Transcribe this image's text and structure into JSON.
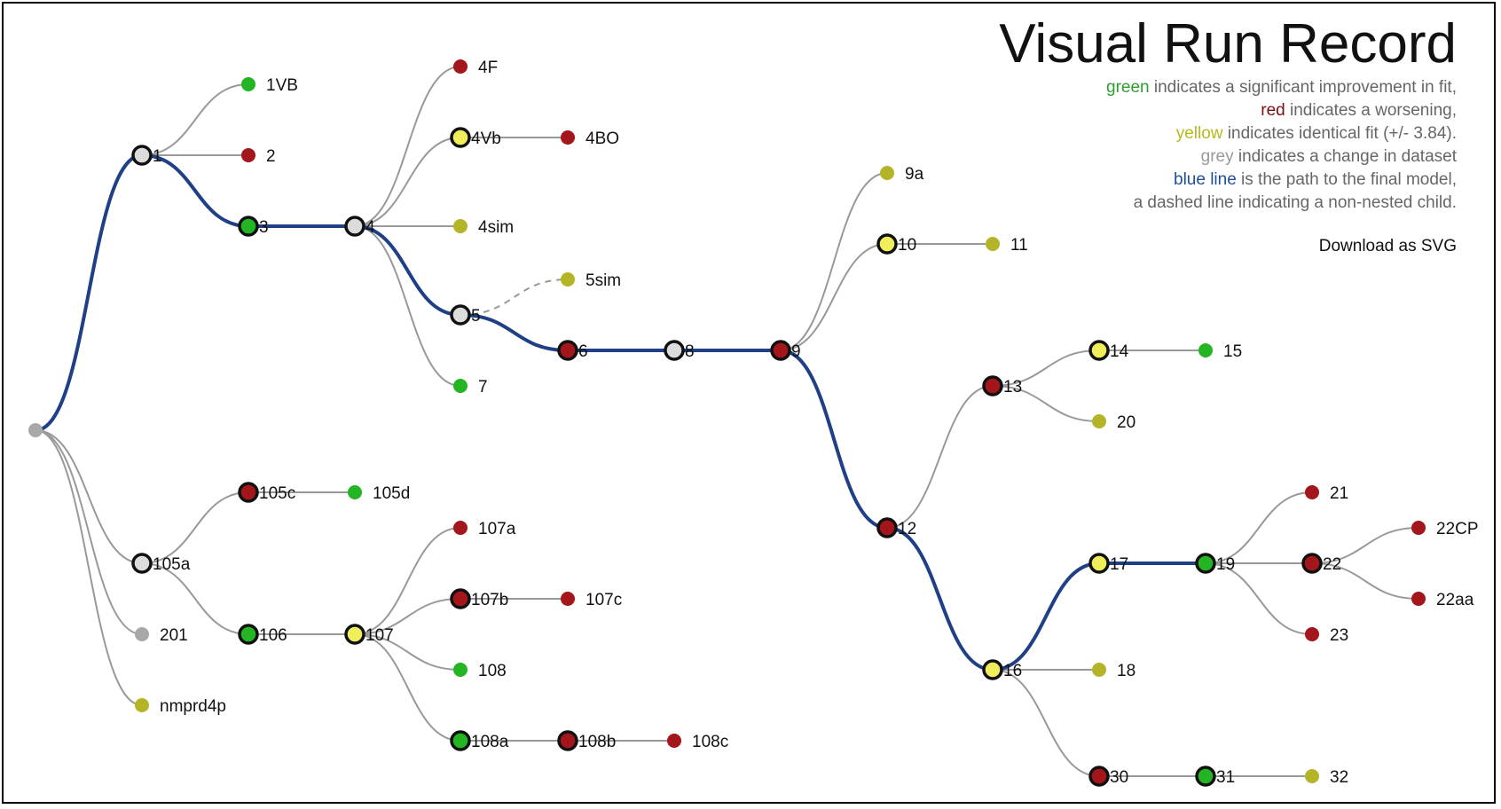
{
  "title": "Visual Run Record",
  "legend": [
    {
      "key": "green",
      "key_color": "#2e9e2e",
      "text": " indicates a significant improvement in fit,"
    },
    {
      "key": "red",
      "key_color": "#7b0f12",
      "text": " indicates a worsening,"
    },
    {
      "key": "yellow",
      "key_color": "#b8b81e",
      "text": " indicates identical fit (+/- 3.84)."
    },
    {
      "key": "grey",
      "key_color": "#999999",
      "text": " indicates a change in dataset"
    },
    {
      "key": "blue line",
      "key_color": "#1f4e9c",
      "text": " is the path to the final model,"
    },
    {
      "key": "",
      "key_color": "#666666",
      "text": "a dashed line indicating a non-nested child."
    }
  ],
  "download_label": "Download as SVG",
  "colors": {
    "green": "#23b523",
    "red": "#a3161c",
    "yellow": "#f0ee5a",
    "yellow_leaf": "#b3b428",
    "grey": "#dcdcdc",
    "grey_leaf": "#a8a8a8",
    "blue_path": "#1f3f86",
    "edge": "#999999"
  },
  "nodes": [
    {
      "id": "root",
      "label": "",
      "color": "grey_leaf",
      "expanded": false
    },
    {
      "id": "1",
      "label": "1",
      "color": "grey",
      "expanded": true
    },
    {
      "id": "1VB",
      "label": "1VB",
      "color": "green",
      "expanded": false
    },
    {
      "id": "2",
      "label": "2",
      "color": "red",
      "expanded": false
    },
    {
      "id": "3",
      "label": "3",
      "color": "green",
      "expanded": true
    },
    {
      "id": "4",
      "label": "4",
      "color": "grey",
      "expanded": true
    },
    {
      "id": "4F",
      "label": "4F",
      "color": "red",
      "expanded": false
    },
    {
      "id": "4Vb",
      "label": "4Vb",
      "color": "yellow",
      "expanded": true
    },
    {
      "id": "4BO",
      "label": "4BO",
      "color": "red",
      "expanded": false
    },
    {
      "id": "4sim",
      "label": "4sim",
      "color": "yellow_leaf",
      "expanded": false
    },
    {
      "id": "5",
      "label": "5",
      "color": "grey",
      "expanded": true
    },
    {
      "id": "5sim",
      "label": "5sim",
      "color": "yellow_leaf",
      "expanded": false
    },
    {
      "id": "7",
      "label": "7",
      "color": "green",
      "expanded": false
    },
    {
      "id": "6",
      "label": "6",
      "color": "red",
      "expanded": true
    },
    {
      "id": "8",
      "label": "8",
      "color": "grey",
      "expanded": true
    },
    {
      "id": "9",
      "label": "9",
      "color": "red",
      "expanded": true
    },
    {
      "id": "9a",
      "label": "9a",
      "color": "yellow_leaf",
      "expanded": false
    },
    {
      "id": "10",
      "label": "10",
      "color": "yellow",
      "expanded": true
    },
    {
      "id": "11",
      "label": "11",
      "color": "yellow_leaf",
      "expanded": false
    },
    {
      "id": "12",
      "label": "12",
      "color": "red",
      "expanded": true
    },
    {
      "id": "13",
      "label": "13",
      "color": "red",
      "expanded": true
    },
    {
      "id": "14",
      "label": "14",
      "color": "yellow",
      "expanded": true
    },
    {
      "id": "15",
      "label": "15",
      "color": "green",
      "expanded": false
    },
    {
      "id": "20",
      "label": "20",
      "color": "yellow_leaf",
      "expanded": false
    },
    {
      "id": "16",
      "label": "16",
      "color": "yellow",
      "expanded": true
    },
    {
      "id": "17",
      "label": "17",
      "color": "yellow",
      "expanded": true
    },
    {
      "id": "18",
      "label": "18",
      "color": "yellow_leaf",
      "expanded": false
    },
    {
      "id": "30",
      "label": "30",
      "color": "red",
      "expanded": true
    },
    {
      "id": "31",
      "label": "31",
      "color": "green",
      "expanded": true
    },
    {
      "id": "32",
      "label": "32",
      "color": "yellow_leaf",
      "expanded": false
    },
    {
      "id": "19",
      "label": "19",
      "color": "green",
      "expanded": true
    },
    {
      "id": "21",
      "label": "21",
      "color": "red",
      "expanded": false
    },
    {
      "id": "22",
      "label": "22",
      "color": "red",
      "expanded": true
    },
    {
      "id": "23",
      "label": "23",
      "color": "red",
      "expanded": false
    },
    {
      "id": "22CP",
      "label": "22CP",
      "color": "red",
      "expanded": false
    },
    {
      "id": "22aa",
      "label": "22aa",
      "color": "red",
      "expanded": false
    },
    {
      "id": "105a",
      "label": "105a",
      "color": "grey",
      "expanded": true
    },
    {
      "id": "105c",
      "label": "105c",
      "color": "red",
      "expanded": true
    },
    {
      "id": "105d",
      "label": "105d",
      "color": "green",
      "expanded": false
    },
    {
      "id": "106",
      "label": "106",
      "color": "green",
      "expanded": true
    },
    {
      "id": "107",
      "label": "107",
      "color": "yellow",
      "expanded": true
    },
    {
      "id": "107a",
      "label": "107a",
      "color": "red",
      "expanded": false
    },
    {
      "id": "107b",
      "label": "107b",
      "color": "red",
      "expanded": true
    },
    {
      "id": "107c",
      "label": "107c",
      "color": "red",
      "expanded": false
    },
    {
      "id": "108",
      "label": "108",
      "color": "green",
      "expanded": false
    },
    {
      "id": "108a",
      "label": "108a",
      "color": "green",
      "expanded": true
    },
    {
      "id": "108b",
      "label": "108b",
      "color": "red",
      "expanded": true
    },
    {
      "id": "108c",
      "label": "108c",
      "color": "red",
      "expanded": false
    },
    {
      "id": "201",
      "label": "201",
      "color": "grey_leaf",
      "expanded": false
    },
    {
      "id": "nmprd4p",
      "label": "nmprd4p",
      "color": "yellow_leaf",
      "expanded": false
    }
  ],
  "edges": [
    {
      "from": "root",
      "to": "1",
      "final_path": true,
      "dashed": false
    },
    {
      "from": "root",
      "to": "105a",
      "final_path": false,
      "dashed": false
    },
    {
      "from": "root",
      "to": "201",
      "final_path": false,
      "dashed": false
    },
    {
      "from": "root",
      "to": "nmprd4p",
      "final_path": false,
      "dashed": false
    },
    {
      "from": "1",
      "to": "1VB",
      "final_path": false,
      "dashed": false
    },
    {
      "from": "1",
      "to": "2",
      "final_path": false,
      "dashed": false
    },
    {
      "from": "1",
      "to": "3",
      "final_path": true,
      "dashed": false
    },
    {
      "from": "3",
      "to": "4",
      "final_path": true,
      "dashed": false
    },
    {
      "from": "4",
      "to": "4F",
      "final_path": false,
      "dashed": false
    },
    {
      "from": "4",
      "to": "4Vb",
      "final_path": false,
      "dashed": false
    },
    {
      "from": "4",
      "to": "4sim",
      "final_path": false,
      "dashed": false
    },
    {
      "from": "4",
      "to": "5",
      "final_path": true,
      "dashed": false
    },
    {
      "from": "4",
      "to": "7",
      "final_path": false,
      "dashed": false
    },
    {
      "from": "4Vb",
      "to": "4BO",
      "final_path": false,
      "dashed": false
    },
    {
      "from": "5",
      "to": "5sim",
      "final_path": false,
      "dashed": true
    },
    {
      "from": "5",
      "to": "6",
      "final_path": true,
      "dashed": false
    },
    {
      "from": "6",
      "to": "8",
      "final_path": true,
      "dashed": false
    },
    {
      "from": "8",
      "to": "9",
      "final_path": true,
      "dashed": false
    },
    {
      "from": "9",
      "to": "9a",
      "final_path": false,
      "dashed": false
    },
    {
      "from": "9",
      "to": "10",
      "final_path": false,
      "dashed": false
    },
    {
      "from": "9",
      "to": "12",
      "final_path": true,
      "dashed": false
    },
    {
      "from": "10",
      "to": "11",
      "final_path": false,
      "dashed": false
    },
    {
      "from": "12",
      "to": "13",
      "final_path": false,
      "dashed": false
    },
    {
      "from": "12",
      "to": "16",
      "final_path": true,
      "dashed": false
    },
    {
      "from": "13",
      "to": "14",
      "final_path": false,
      "dashed": false
    },
    {
      "from": "13",
      "to": "20",
      "final_path": false,
      "dashed": false
    },
    {
      "from": "14",
      "to": "15",
      "final_path": false,
      "dashed": false
    },
    {
      "from": "16",
      "to": "17",
      "final_path": true,
      "dashed": false
    },
    {
      "from": "16",
      "to": "18",
      "final_path": false,
      "dashed": false
    },
    {
      "from": "16",
      "to": "30",
      "final_path": false,
      "dashed": false
    },
    {
      "from": "30",
      "to": "31",
      "final_path": false,
      "dashed": false
    },
    {
      "from": "31",
      "to": "32",
      "final_path": false,
      "dashed": false
    },
    {
      "from": "17",
      "to": "19",
      "final_path": true,
      "dashed": false
    },
    {
      "from": "19",
      "to": "21",
      "final_path": false,
      "dashed": false
    },
    {
      "from": "19",
      "to": "22",
      "final_path": false,
      "dashed": false
    },
    {
      "from": "19",
      "to": "23",
      "final_path": false,
      "dashed": false
    },
    {
      "from": "22",
      "to": "22CP",
      "final_path": false,
      "dashed": false
    },
    {
      "from": "22",
      "to": "22aa",
      "final_path": false,
      "dashed": false
    },
    {
      "from": "105a",
      "to": "105c",
      "final_path": false,
      "dashed": false
    },
    {
      "from": "105a",
      "to": "106",
      "final_path": false,
      "dashed": false
    },
    {
      "from": "105c",
      "to": "105d",
      "final_path": false,
      "dashed": false
    },
    {
      "from": "106",
      "to": "107",
      "final_path": false,
      "dashed": false
    },
    {
      "from": "107",
      "to": "107a",
      "final_path": false,
      "dashed": false
    },
    {
      "from": "107",
      "to": "107b",
      "final_path": false,
      "dashed": false
    },
    {
      "from": "107",
      "to": "108",
      "final_path": false,
      "dashed": false
    },
    {
      "from": "107",
      "to": "108a",
      "final_path": false,
      "dashed": false
    },
    {
      "from": "107b",
      "to": "107c",
      "final_path": false,
      "dashed": false
    },
    {
      "from": "108a",
      "to": "108b",
      "final_path": false,
      "dashed": false
    },
    {
      "from": "108b",
      "to": "108c",
      "final_path": false,
      "dashed": false
    }
  ]
}
